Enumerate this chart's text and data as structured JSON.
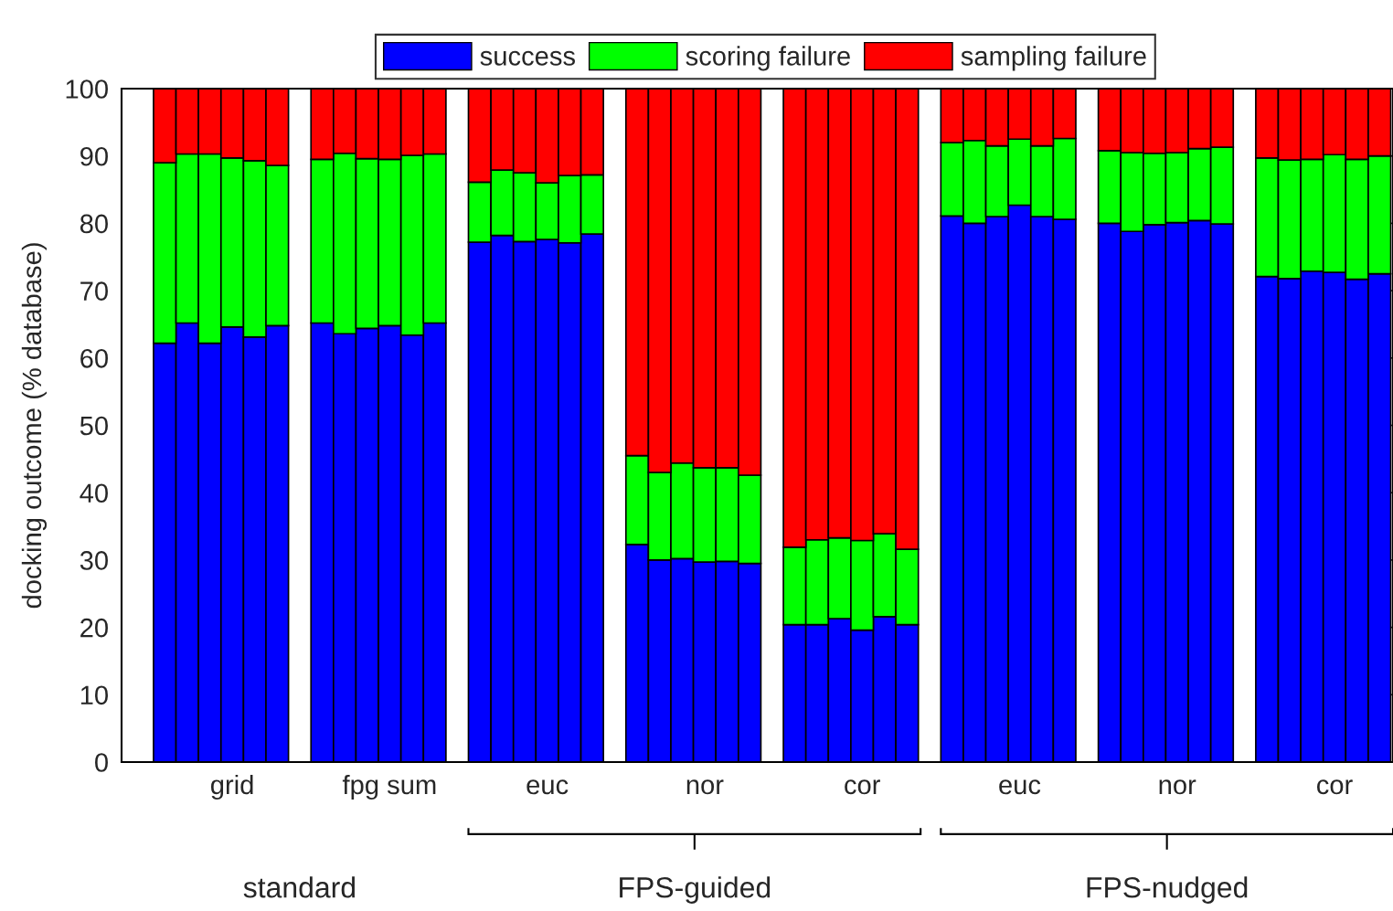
{
  "chart_data": {
    "type": "bar",
    "stacked": true,
    "ylabel": "docking outcome (% database)",
    "categories": [
      null,
      null,
      null,
      "grid",
      null,
      null,
      null,
      null,
      null,
      null,
      "fpg sum",
      null,
      null,
      null,
      null,
      null,
      null,
      "euc",
      null,
      null,
      null,
      null,
      null,
      null,
      "nor",
      null,
      null,
      null,
      null,
      null,
      null,
      "cor",
      null,
      null,
      null,
      null,
      null,
      null,
      "euc",
      null,
      null,
      null,
      null,
      null,
      null,
      "nor",
      null,
      null,
      null,
      null,
      null,
      null,
      "cor",
      null,
      null
    ],
    "series": [
      {
        "name": "success",
        "color": "#0000ff",
        "values": [
          62.2,
          65.2,
          62.2,
          64.6,
          63.1,
          64.8,
          null,
          65.2,
          63.6,
          64.4,
          64.8,
          63.4,
          65.2,
          null,
          77.2,
          78.2,
          77.3,
          77.6,
          77.1,
          78.4,
          null,
          32.3,
          30,
          30.2,
          29.7,
          29.8,
          29.5,
          null,
          20.4,
          20.4,
          21.3,
          19.6,
          21.6,
          20.4,
          null,
          81.1,
          80,
          81,
          82.7,
          81,
          80.6,
          null,
          80,
          78.8,
          79.8,
          80.1,
          80.4,
          79.9,
          null,
          72.1,
          71.8,
          72.9,
          72.7,
          71.7,
          72.5
        ]
      },
      {
        "name": "scoring failure",
        "color": "#00ff00",
        "values": [
          26.8,
          25.1,
          28.1,
          25.1,
          26.2,
          23.8,
          null,
          24.3,
          26.8,
          25.2,
          24.7,
          26.7,
          25.1,
          null,
          8.9,
          9.7,
          10.2,
          8.4,
          10,
          8.8,
          null,
          13.2,
          13,
          14.2,
          14,
          13.9,
          13.1,
          null,
          11.5,
          12.6,
          12,
          13.3,
          12.3,
          11.2,
          null,
          10.9,
          12.3,
          10.5,
          9.8,
          10.5,
          12,
          null,
          10.8,
          11.7,
          10.6,
          10.4,
          10.7,
          11.4,
          null,
          17.6,
          17.6,
          16.6,
          17.5,
          17.8,
          17.5
        ]
      },
      {
        "name": "sampling failure",
        "color": "#ff0000",
        "values": [
          11,
          9.7,
          9.7,
          10.3,
          10.7,
          11.4,
          null,
          10.5,
          9.6,
          10.4,
          10.5,
          9.9,
          9.7,
          null,
          13.9,
          12.1,
          12.5,
          14,
          12.9,
          12.8,
          null,
          54.5,
          57,
          55.6,
          56.3,
          56.3,
          57.4,
          null,
          68.1,
          67,
          66.7,
          67.1,
          66.1,
          68.4,
          null,
          8,
          7.7,
          8.5,
          7.5,
          8.5,
          7.4,
          null,
          9.2,
          9.5,
          9.6,
          9.5,
          8.9,
          8.7,
          null,
          10.3,
          10.6,
          10.5,
          9.8,
          10.5,
          10
        ]
      }
    ],
    "ylim": [
      0,
      100
    ],
    "yticks": [
      0,
      10,
      20,
      30,
      40,
      50,
      60,
      70,
      80,
      90,
      100
    ],
    "annotations": [
      "standard",
      "FPS-guided",
      "FPS-nudged"
    ],
    "legend": "top",
    "grid": false
  }
}
